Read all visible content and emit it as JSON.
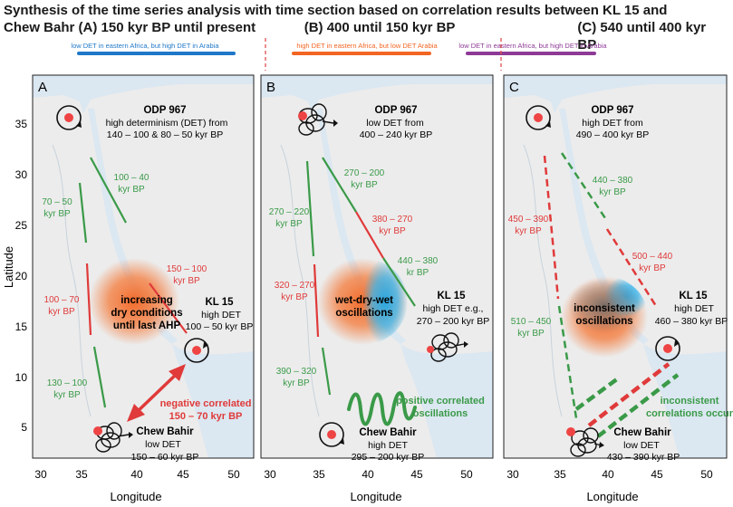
{
  "title": {
    "line1": "Synthesis of the time series analysis with time section based on correlation results between KL 15 and",
    "line2_a": "Chew  Bahr (A) 150 kyr BP until present",
    "line2_b": "(B) 400 until 150 kyr BP",
    "line2_c": "(C) 540 until 400 kyr BP"
  },
  "legend": {
    "blue": "low DET in eastern Africa, but high DET in Arabia",
    "orange": "high DET in eastern Africa, but low DET Arabia",
    "purple": "low DET in eastern Africa, but high DET in Arabia",
    "colors": {
      "blue": "#1f78c8",
      "orange": "#f26522",
      "purple": "#8e3a96"
    }
  },
  "axes": {
    "xlabel": "Longitude",
    "ylabel": "Latitude",
    "xticks": [
      "30",
      "35",
      "40",
      "45",
      "50"
    ],
    "yticks": [
      "5",
      "10",
      "15",
      "20",
      "25",
      "30",
      "35"
    ]
  },
  "colors": {
    "green": "#3a9a48",
    "red": "#e03a3a",
    "sea": "#dbe7f1",
    "land": "#ececec"
  },
  "panels": [
    {
      "letter": "A",
      "odp": {
        "name": "ODP 967",
        "l1": "high determinism (DET) from",
        "l2": "140 – 100 & 80 – 50 kyr BP"
      },
      "kl": {
        "name": "KL 15",
        "l1": "high DET",
        "l2": "100 – 50 kyr BP"
      },
      "chew": {
        "name": "Chew Bahir",
        "l1": "low DET",
        "l2": "150 – 60 kyr BP"
      },
      "center": [
        "increasing",
        "dry conditions",
        "until last AHP"
      ],
      "segs": [
        {
          "a": "100 – 40",
          "b": "kyr BP"
        },
        {
          "a": "70 – 50",
          "b": "kyr BP"
        },
        {
          "a": "150 – 100",
          "b": "kyr BP"
        },
        {
          "a": "100 – 70",
          "b": "kyr BP"
        },
        {
          "a": "130 – 100",
          "b": "kyr BP"
        }
      ],
      "correlation": [
        "negative correlated",
        "150 – 70 kyr BP"
      ]
    },
    {
      "letter": "B",
      "odp": {
        "name": "ODP 967",
        "l1": "low DET from",
        "l2": "400 – 240 kyr BP"
      },
      "kl": {
        "name": "KL 15",
        "l1": "high DET e.g.,",
        "l2": "270 – 200 kyr BP"
      },
      "chew": {
        "name": "Chew Bahir",
        "l1": "high DET",
        "l2": "295 – 200 kyr BP"
      },
      "center": [
        "wet-dry-wet",
        "oscillations"
      ],
      "segs": [
        {
          "a": "270 – 200",
          "b": "kyr BP"
        },
        {
          "a": "270 – 220",
          "b": "kyr BP"
        },
        {
          "a": "380 – 270",
          "b": "kyr BP"
        },
        {
          "a": "440 – 380",
          "b": "kr BP"
        },
        {
          "a": "320 – 270",
          "b": "kyr BP"
        },
        {
          "a": "390 – 320",
          "b": "kyr BP"
        }
      ],
      "correlation": [
        "positive correlated",
        "oscillations"
      ]
    },
    {
      "letter": "C",
      "odp": {
        "name": "ODP 967",
        "l1": "high DET from",
        "l2": "490 – 400 kyr BP"
      },
      "kl": {
        "name": "KL 15",
        "l1": "high DET",
        "l2": "460 – 380 kyr BP"
      },
      "chew": {
        "name": "Chew Bahir",
        "l1": "low DET",
        "l2": "430 – 390 kyr BP"
      },
      "center": [
        "inconsistent",
        "oscillations"
      ],
      "segs": [
        {
          "a": "440 – 380",
          "b": "kyr BP"
        },
        {
          "a": "450 – 390",
          "b": "kyr BP"
        },
        {
          "a": "500 – 440",
          "b": "kyr BP"
        },
        {
          "a": "510 – 450",
          "b": "kyr BP"
        }
      ],
      "correlation": [
        "inconsistent",
        "correlations occur"
      ]
    }
  ]
}
